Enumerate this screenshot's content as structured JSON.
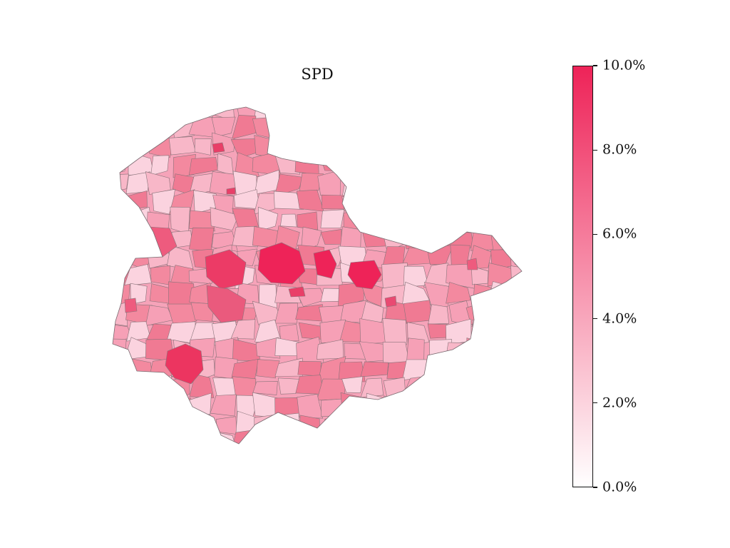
{
  "title": "SPD",
  "colorbar": {
    "min_color": "#ffffff",
    "max_color": "#ee2358",
    "range": [
      0,
      10
    ],
    "ticks": [
      {
        "value": 0,
        "label": "0.0%"
      },
      {
        "value": 2,
        "label": "2.0%"
      },
      {
        "value": 4,
        "label": "4.0%"
      },
      {
        "value": 6,
        "label": "6.0%"
      },
      {
        "value": 8,
        "label": "8.0%"
      },
      {
        "value": 10,
        "label": "10.0%"
      }
    ]
  },
  "map": {
    "region_border_color": "#7a6a70",
    "palette": [
      "#fbd3df",
      "#f8b7c8",
      "#f6a0b6",
      "#f3899f",
      "#f07a93",
      "#ec5c7d",
      "#ea3f68",
      "#ee2358"
    ]
  }
}
